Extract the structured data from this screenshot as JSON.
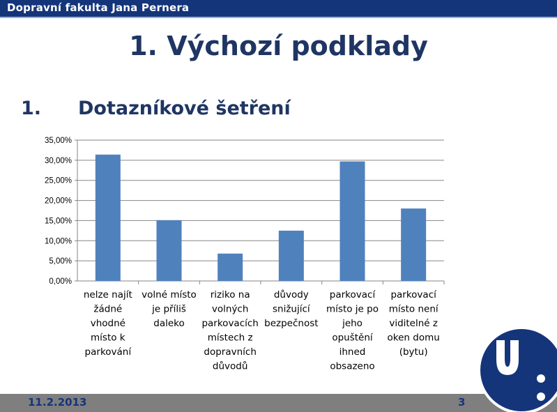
{
  "header": {
    "faculty": "Dopravní fakulta Jana Pernera"
  },
  "slide": {
    "title": "1. Výchozí podklady"
  },
  "section": {
    "number": "1.",
    "title": "Dotazníkové šetření"
  },
  "footer": {
    "date": "11.2.2013",
    "page": "3"
  },
  "colors": {
    "accent": "#14357a",
    "bar": "#4f81bd",
    "footer": "#7f7f7f"
  },
  "logo": {
    "icon": "university-logo-icon"
  },
  "chart_data": {
    "type": "bar",
    "categories": [
      [
        "nelze najít",
        "žádné",
        "vhodné",
        "místo k",
        "parkování"
      ],
      [
        "volné místo",
        "je příliš",
        "daleko"
      ],
      [
        "riziko na",
        "volných",
        "parkovacích",
        "místech z",
        "dopravních",
        "důvodů"
      ],
      [
        "důvody",
        "snižující",
        "bezpečnost"
      ],
      [
        "parkovací",
        "místo je po",
        "jeho",
        "opuštění",
        "ihned",
        "obsazeno"
      ],
      [
        "parkovací",
        "místo není",
        "viditelné z",
        "oken domu",
        "(bytu)"
      ]
    ],
    "values": [
      31.4,
      15.1,
      6.8,
      12.5,
      29.7,
      18.0
    ],
    "yticks": [
      "0,00%",
      "5,00%",
      "10,00%",
      "15,00%",
      "20,00%",
      "25,00%",
      "30,00%",
      "35,00%"
    ],
    "ylim": [
      0,
      35
    ],
    "grid": true
  }
}
